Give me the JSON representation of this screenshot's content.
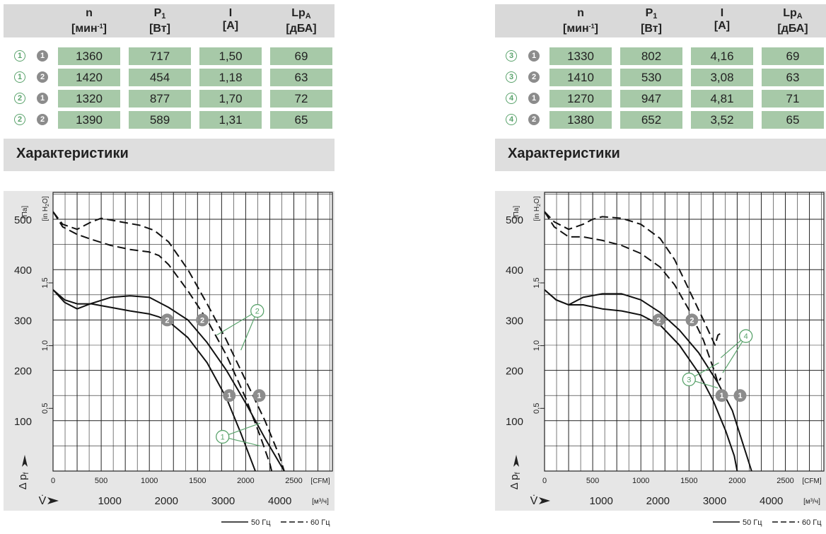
{
  "panels": [
    {
      "table": {
        "headers": [
          {
            "symbol": "n",
            "sub": "",
            "unit": "[мин",
            "unit_sup": "-1",
            "unit_end": "]"
          },
          {
            "symbol": "P",
            "sub": "1",
            "unit": "[Вт]",
            "unit_sup": "",
            "unit_end": ""
          },
          {
            "symbol": "I",
            "sub": "",
            "unit": "[А]",
            "unit_sup": "",
            "unit_end": ""
          },
          {
            "symbol": "Lp",
            "sub": "A",
            "unit": "[дБА]",
            "unit_sup": "",
            "unit_end": ""
          }
        ],
        "rows": [
          {
            "m1": "1",
            "m2": "1",
            "n": "1360",
            "p1": "717",
            "i": "1,50",
            "lpa": "69"
          },
          {
            "m1": "1",
            "m2": "2",
            "n": "1420",
            "p1": "454",
            "i": "1,18",
            "lpa": "63"
          },
          {
            "m1": "2",
            "m2": "1",
            "n": "1320",
            "p1": "877",
            "i": "1,70",
            "lpa": "72"
          },
          {
            "m1": "2",
            "m2": "2",
            "n": "1390",
            "p1": "589",
            "i": "1,31",
            "lpa": "65"
          }
        ]
      },
      "section_title": "Характеристики"
    },
    {
      "table": {
        "headers": [
          {
            "symbol": "n",
            "sub": "",
            "unit": "[мин",
            "unit_sup": "-1",
            "unit_end": "]"
          },
          {
            "symbol": "P",
            "sub": "1",
            "unit": "[Вт]",
            "unit_sup": "",
            "unit_end": ""
          },
          {
            "symbol": "I",
            "sub": "",
            "unit": "[А]",
            "unit_sup": "",
            "unit_end": ""
          },
          {
            "symbol": "Lp",
            "sub": "A",
            "unit": "[дБА]",
            "unit_sup": "",
            "unit_end": ""
          }
        ],
        "rows": [
          {
            "m1": "3",
            "m2": "1",
            "n": "1330",
            "p1": "802",
            "i": "4,16",
            "lpa": "69"
          },
          {
            "m1": "3",
            "m2": "2",
            "n": "1410",
            "p1": "530",
            "i": "3,08",
            "lpa": "63"
          },
          {
            "m1": "4",
            "m2": "1",
            "n": "1270",
            "p1": "947",
            "i": "4,81",
            "lpa": "71"
          },
          {
            "m1": "4",
            "m2": "2",
            "n": "1380",
            "p1": "652",
            "i": "3,52",
            "lpa": "65"
          }
        ]
      },
      "section_title": "Характеристики"
    }
  ],
  "chart_data": [
    {
      "type": "line",
      "ylabel_pa": "[Па]",
      "ylabel_inh2o": "[in H",
      "ylabel_inh2o_sub": "2",
      "ylabel_inh2o_end": "O]",
      "y_symbol": "Δ p",
      "y_symbol_sub": "f",
      "x_symbol": "V̇",
      "yticks_pa": [
        100,
        200,
        300,
        400,
        500
      ],
      "yticks_inh2o": [
        "0,5",
        "1,0",
        "1,5"
      ],
      "xticks_cfm": [
        0,
        500,
        1000,
        1500,
        2000,
        2500
      ],
      "xlabel_cfm": "[CFM]",
      "xticks_m3h": [
        1000,
        2000,
        3000,
        4000
      ],
      "xlabel_m3h": "[м³/ч]",
      "xlim_cfm": [
        0,
        2900
      ],
      "ylim_pa": [
        0,
        550
      ],
      "grid": true,
      "legend": {
        "solid": "50 Гц",
        "dashed": "60 Гц",
        "position": "bottom-right"
      },
      "series": [
        {
          "freq": "50 Гц",
          "dashed": false,
          "points": [
            [
              0,
              360
            ],
            [
              120,
              335
            ],
            [
              250,
              322
            ],
            [
              400,
              333
            ],
            [
              600,
              345
            ],
            [
              800,
              348
            ],
            [
              1000,
              345
            ],
            [
              1200,
              325
            ],
            [
              1400,
              300
            ],
            [
              1600,
              255
            ],
            [
              1800,
              200
            ],
            [
              2000,
              135
            ],
            [
              2200,
              65
            ],
            [
              2400,
              0
            ]
          ]
        },
        {
          "freq": "50 Гц",
          "dashed": false,
          "points": [
            [
              0,
              360
            ],
            [
              120,
              340
            ],
            [
              250,
              332
            ],
            [
              400,
              332
            ],
            [
              600,
              325
            ],
            [
              800,
              318
            ],
            [
              1000,
              312
            ],
            [
              1100,
              306
            ],
            [
              1200,
              297
            ],
            [
              1400,
              265
            ],
            [
              1600,
              215
            ],
            [
              1800,
              145
            ],
            [
              1950,
              75
            ],
            [
              2100,
              0
            ]
          ]
        },
        {
          "freq": "60 Гц",
          "dashed": true,
          "points": [
            [
              0,
              515
            ],
            [
              100,
              490
            ],
            [
              250,
              480
            ],
            [
              400,
              495
            ],
            [
              500,
              502
            ],
            [
              700,
              495
            ],
            [
              900,
              488
            ],
            [
              1050,
              478
            ],
            [
              1200,
              455
            ],
            [
              1400,
              400
            ],
            [
              1600,
              332
            ],
            [
              1800,
              260
            ],
            [
              2000,
              180
            ],
            [
              2200,
              100
            ],
            [
              2350,
              30
            ],
            [
              2400,
              0
            ]
          ]
        },
        {
          "freq": "60 Гц",
          "dashed": true,
          "points": [
            [
              0,
              515
            ],
            [
              100,
              485
            ],
            [
              250,
              470
            ],
            [
              400,
              460
            ],
            [
              600,
              448
            ],
            [
              800,
              440
            ],
            [
              1000,
              435
            ],
            [
              1100,
              428
            ],
            [
              1200,
              410
            ],
            [
              1400,
              358
            ],
            [
              1600,
              300
            ],
            [
              1800,
              230
            ],
            [
              2000,
              145
            ],
            [
              2150,
              70
            ],
            [
              2250,
              15
            ],
            [
              2270,
              0
            ]
          ]
        }
      ],
      "markers": [
        {
          "label": "2",
          "style": "filled",
          "x": 1185,
          "y": 300
        },
        {
          "label": "2",
          "style": "filled",
          "x": 1550,
          "y": 300
        },
        {
          "label": "1",
          "style": "filled",
          "x": 1830,
          "y": 150
        },
        {
          "label": "1",
          "style": "filled",
          "x": 2140,
          "y": 150
        },
        {
          "label": "2",
          "style": "outline",
          "x": 2120,
          "y": 318
        },
        {
          "label": "1",
          "style": "outline",
          "x": 1760,
          "y": 68
        }
      ],
      "callouts": [
        {
          "from": [
            2120,
            318
          ],
          "to": [
            1700,
            270
          ]
        },
        {
          "from": [
            2120,
            318
          ],
          "to": [
            1950,
            240
          ]
        },
        {
          "from": [
            1760,
            68
          ],
          "to": [
            2150,
            95
          ]
        },
        {
          "from": [
            1760,
            68
          ],
          "to": [
            2150,
            50
          ]
        }
      ]
    },
    {
      "type": "line",
      "ylabel_pa": "[Па]",
      "ylabel_inh2o": "[in H",
      "ylabel_inh2o_sub": "2",
      "ylabel_inh2o_end": "O]",
      "y_symbol": "Δ p",
      "y_symbol_sub": "f",
      "x_symbol": "V̇",
      "yticks_pa": [
        100,
        200,
        300,
        400,
        500
      ],
      "yticks_inh2o": [
        "0,5",
        "1,0",
        "1,5"
      ],
      "xticks_cfm": [
        0,
        500,
        1000,
        1500,
        2000,
        2500
      ],
      "xlabel_cfm": "[CFM]",
      "xticks_m3h": [
        1000,
        2000,
        3000,
        4000
      ],
      "xlabel_m3h": "[м³/ч]",
      "xlim_cfm": [
        0,
        2900
      ],
      "ylim_pa": [
        0,
        550
      ],
      "grid": true,
      "legend": {
        "solid": "50 Гц",
        "dashed": "60 Гц",
        "position": "bottom-right"
      },
      "series": [
        {
          "freq": "50 Гц",
          "dashed": false,
          "points": [
            [
              0,
              360
            ],
            [
              120,
              340
            ],
            [
              250,
              330
            ],
            [
              400,
              345
            ],
            [
              600,
              352
            ],
            [
              800,
              352
            ],
            [
              1000,
              340
            ],
            [
              1200,
              315
            ],
            [
              1400,
              280
            ],
            [
              1600,
              235
            ],
            [
              1800,
              175
            ],
            [
              1950,
              120
            ],
            [
              2100,
              30
            ],
            [
              2150,
              0
            ]
          ]
        },
        {
          "freq": "50 Гц",
          "dashed": false,
          "points": [
            [
              0,
              360
            ],
            [
              120,
              340
            ],
            [
              250,
              330
            ],
            [
              400,
              330
            ],
            [
              600,
              322
            ],
            [
              800,
              318
            ],
            [
              1000,
              310
            ],
            [
              1100,
              300
            ],
            [
              1200,
              290
            ],
            [
              1400,
              250
            ],
            [
              1600,
              195
            ],
            [
              1750,
              140
            ],
            [
              1880,
              80
            ],
            [
              1970,
              30
            ],
            [
              2000,
              0
            ]
          ]
        },
        {
          "freq": "60 Гц",
          "dashed": true,
          "points": [
            [
              0,
              515
            ],
            [
              100,
              495
            ],
            [
              250,
              480
            ],
            [
              400,
              490
            ],
            [
              500,
              500
            ],
            [
              600,
              505
            ],
            [
              800,
              502
            ],
            [
              1000,
              490
            ],
            [
              1200,
              462
            ],
            [
              1350,
              420
            ],
            [
              1500,
              360
            ],
            [
              1650,
              300
            ],
            [
              1770,
              250
            ],
            [
              1800,
              270
            ],
            [
              1840,
              275
            ]
          ]
        },
        {
          "freq": "60 Гц",
          "dashed": true,
          "points": [
            [
              0,
              515
            ],
            [
              100,
              485
            ],
            [
              250,
              465
            ],
            [
              400,
              465
            ],
            [
              600,
              458
            ],
            [
              800,
              448
            ],
            [
              1000,
              432
            ],
            [
              1200,
              405
            ],
            [
              1350,
              370
            ],
            [
              1500,
              320
            ],
            [
              1650,
              260
            ],
            [
              1760,
              200
            ],
            [
              1800,
              175
            ],
            [
              1830,
              185
            ]
          ]
        }
      ],
      "markers": [
        {
          "label": "2",
          "style": "filled",
          "x": 1185,
          "y": 300
        },
        {
          "label": "2",
          "style": "filled",
          "x": 1530,
          "y": 300
        },
        {
          "label": "1",
          "style": "filled",
          "x": 1840,
          "y": 150
        },
        {
          "label": "1",
          "style": "filled",
          "x": 2030,
          "y": 150
        },
        {
          "label": "4",
          "style": "outline",
          "x": 2090,
          "y": 268
        },
        {
          "label": "3",
          "style": "outline",
          "x": 1500,
          "y": 182
        }
      ],
      "callouts": [
        {
          "from": [
            2090,
            268
          ],
          "to": [
            1830,
            225
          ]
        },
        {
          "from": [
            2090,
            268
          ],
          "to": [
            1850,
            195
          ]
        },
        {
          "from": [
            1500,
            182
          ],
          "to": [
            1810,
            215
          ]
        },
        {
          "from": [
            1500,
            182
          ],
          "to": [
            1800,
            165
          ]
        }
      ]
    }
  ]
}
